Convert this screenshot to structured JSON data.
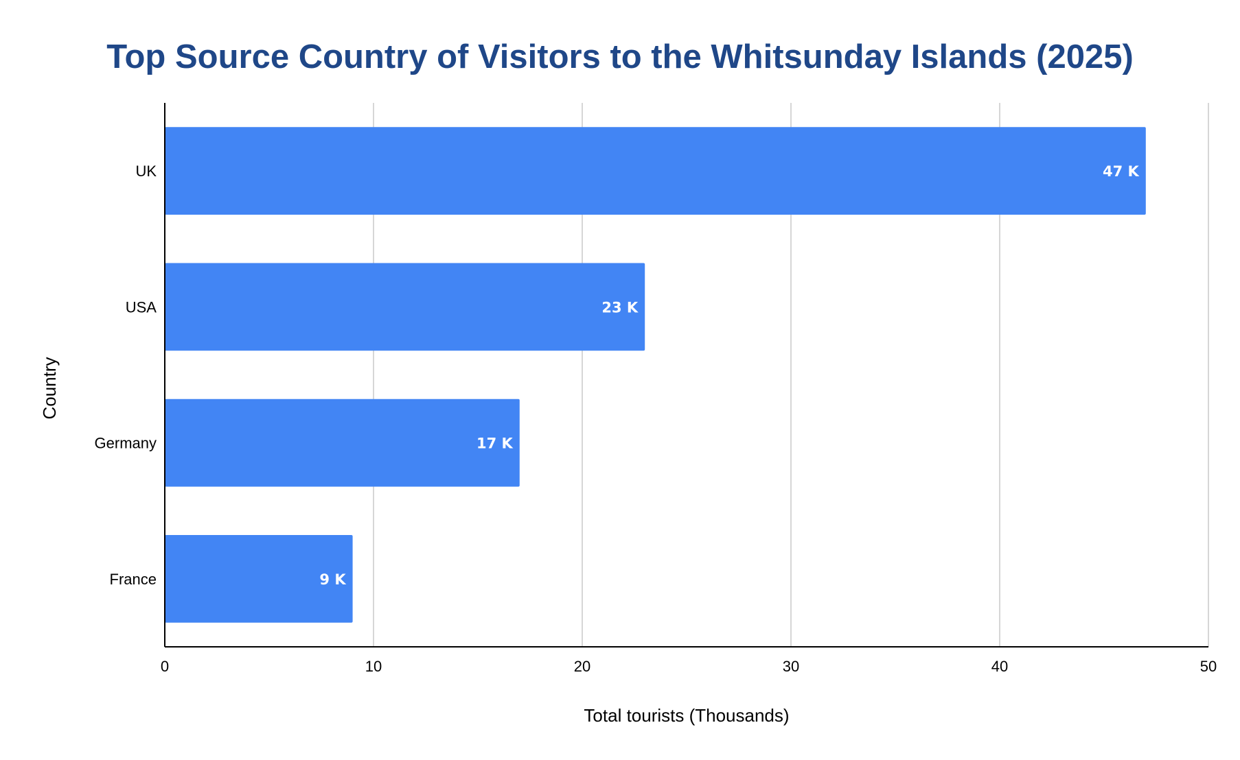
{
  "chart_data": {
    "type": "bar",
    "orientation": "horizontal",
    "title": "Top Source Country of Visitors to the Whitsunday Islands (2025)",
    "xlabel": "Total tourists (Thousands)",
    "ylabel": "Country",
    "categories": [
      "UK",
      "USA",
      "Germany",
      "France"
    ],
    "values": [
      47,
      23,
      17,
      9
    ],
    "data_labels": [
      "47 K",
      "23 K",
      "17 K",
      "9 K"
    ],
    "xlim": [
      0,
      50
    ],
    "x_ticks": [
      0,
      10,
      20,
      30,
      40,
      50
    ],
    "grid": "vertical",
    "legend": "none",
    "bar_color": "#4285f4",
    "title_color": "#1f4788"
  }
}
